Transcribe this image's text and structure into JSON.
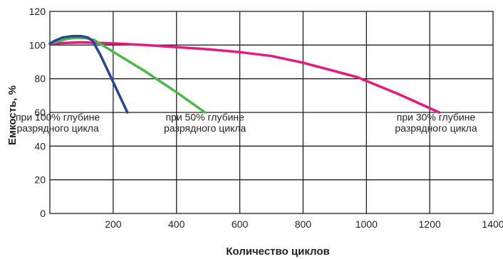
{
  "chart_data": {
    "type": "line",
    "xlabel": "Количество циклов",
    "ylabel": "Емкость, %",
    "xlim": [
      0,
      1400
    ],
    "ylim": [
      0,
      120
    ],
    "x_ticks": [
      {
        "value": 200,
        "label": "200"
      },
      {
        "value": 400,
        "label": "400"
      },
      {
        "value": 600,
        "label": "600"
      },
      {
        "value": 800,
        "label": "800"
      },
      {
        "value": 1000,
        "label": "1000"
      },
      {
        "value": 1200,
        "label": "1200"
      },
      {
        "value": 1400,
        "label": "1400"
      }
    ],
    "y_ticks": [
      {
        "value": 0,
        "label": "0"
      },
      {
        "value": 20,
        "label": "20"
      },
      {
        "value": 40,
        "label": "40"
      },
      {
        "value": 60,
        "label": "60"
      },
      {
        "value": 80,
        "label": "80"
      },
      {
        "value": 100,
        "label": "100"
      },
      {
        "value": 120,
        "label": "120"
      }
    ],
    "grid": true,
    "series": [
      {
        "name": "при 30% глубине разрядного цикла",
        "color": "#e6197d",
        "points": [
          [
            0,
            100.8
          ],
          [
            50,
            101.3
          ],
          [
            100,
            101.6
          ],
          [
            200,
            101
          ],
          [
            300,
            100
          ],
          [
            400,
            98.8
          ],
          [
            500,
            97.5
          ],
          [
            600,
            95.8
          ],
          [
            700,
            93.5
          ],
          [
            800,
            89.5
          ],
          [
            900,
            84.5
          ],
          [
            970,
            81
          ],
          [
            1100,
            71
          ],
          [
            1230,
            60
          ]
        ]
      },
      {
        "name": "при 50% глубине разрядного цикла",
        "color": "#4cb847",
        "points": [
          [
            0,
            100.8
          ],
          [
            20,
            102
          ],
          [
            50,
            103.5
          ],
          [
            80,
            104.3
          ],
          [
            110,
            104.2
          ],
          [
            140,
            103
          ],
          [
            200,
            96
          ],
          [
            300,
            84.5
          ],
          [
            400,
            72
          ],
          [
            490,
            60
          ]
        ]
      },
      {
        "name": "при 100% глубине разрядного цикла",
        "color": "#24469c",
        "points": [
          [
            0,
            100.8
          ],
          [
            15,
            102.5
          ],
          [
            40,
            104.5
          ],
          [
            70,
            105.3
          ],
          [
            100,
            105.3
          ],
          [
            120,
            104.5
          ],
          [
            135,
            102.5
          ],
          [
            160,
            94
          ],
          [
            200,
            78
          ],
          [
            245,
            60
          ]
        ]
      }
    ],
    "annotations": [
      {
        "x": 25,
        "y1": 55.2,
        "y2": 48.6,
        "lines": [
          "при 100% глубине",
          "разрядного цикла"
        ]
      },
      {
        "x": 490,
        "y1": 55.2,
        "y2": 48.6,
        "lines": [
          "при 50% глубине",
          "разрядного цикла"
        ]
      },
      {
        "x": 1220,
        "y1": 55.2,
        "y2": 48.6,
        "lines": [
          "при 30% глубине",
          "разрядного цикла"
        ]
      }
    ]
  }
}
